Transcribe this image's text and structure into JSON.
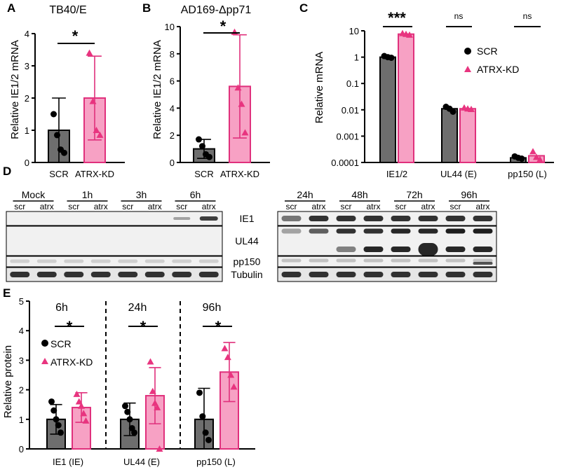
{
  "colors": {
    "scr": "#6e6e6e",
    "atrx": "#f7a1c4",
    "atrx_edge": "#e0307c",
    "atrx_point": "#e8347f",
    "point": "#000000"
  },
  "panels": {
    "A": {
      "letter": "A",
      "title": "TB40/E",
      "ylabel": "Relative IE1/2 mRNA",
      "sig": "*"
    },
    "B": {
      "letter": "B",
      "title": "AD169-Δpp71",
      "ylabel": "Relative IE1/2 mRNA",
      "sig": "*"
    },
    "C": {
      "letter": "C",
      "ylabel": "Relative mRNA",
      "sig": [
        "***",
        "ns",
        "ns"
      ],
      "legend": {
        "scr": "SCR",
        "atrx": "ATRX-KD"
      }
    },
    "D": {
      "letter": "D",
      "left_timepoints": [
        "Mock",
        "1h",
        "3h",
        "6h"
      ],
      "right_timepoints": [
        "24h",
        "48h",
        "72h",
        "96h"
      ],
      "lane_labels": [
        "scr",
        "atrx"
      ],
      "proteins": [
        "IE1",
        "UL44",
        "pp150",
        "Tubulin"
      ]
    },
    "E": {
      "letter": "E",
      "ylabel": "Relative protein",
      "timepoints": [
        "6h",
        "24h",
        "96h"
      ],
      "sig": [
        "*",
        "*",
        "*"
      ],
      "legend": {
        "scr": "SCR",
        "atrx": "ATRX-KD"
      }
    }
  },
  "chart_data": [
    {
      "panel": "A",
      "type": "bar",
      "title": "TB40/E",
      "ylabel": "Relative IE1/2 mRNA",
      "categories": [
        "SCR",
        "ATRX-KD"
      ],
      "ylim": [
        0,
        4
      ],
      "yticks": [
        0,
        1,
        2,
        3,
        4
      ],
      "values": [
        1.0,
        2.0
      ],
      "errors": [
        1.0,
        1.3
      ],
      "points": [
        [
          1.5,
          0.85,
          0.4,
          0.3
        ],
        [
          3.4,
          1.9,
          1.0,
          0.85
        ]
      ]
    },
    {
      "panel": "B",
      "type": "bar",
      "title": "AD169-Δpp71",
      "ylabel": "Relative IE1/2 mRNA",
      "categories": [
        "SCR",
        "ATRX-KD"
      ],
      "ylim": [
        0,
        10
      ],
      "yticks": [
        0,
        2,
        4,
        6,
        8,
        10
      ],
      "values": [
        1.0,
        5.6
      ],
      "errors": [
        0.7,
        3.8
      ],
      "points": [
        [
          1.7,
          1.2,
          0.6,
          0.4
        ],
        [
          9.6,
          5.5,
          4.3,
          2.2
        ]
      ]
    },
    {
      "panel": "C",
      "type": "bar",
      "ylabel": "Relative mRNA",
      "yscale": "log",
      "ylim": [
        0.0001,
        10
      ],
      "yticks": [
        0.0001,
        0.001,
        0.01,
        0.1,
        1,
        10
      ],
      "yticklabels": [
        "0.0001",
        "0.001",
        "0.01",
        "0.1",
        "1",
        "10"
      ],
      "categories": [
        "IE1/2",
        "UL44 (E)",
        "pp150 (L)"
      ],
      "series": [
        {
          "name": "SCR",
          "values": [
            1.0,
            0.011,
            0.00015
          ],
          "points": [
            [
              1.1,
              1.0,
              0.95
            ],
            [
              0.013,
              0.011,
              0.0085
            ],
            [
              0.00017,
              0.00015,
              0.00014
            ]
          ]
        },
        {
          "name": "ATRX-KD",
          "values": [
            7.5,
            0.011,
            0.00018
          ],
          "points": [
            [
              8.0,
              7.5,
              7.0
            ],
            [
              0.012,
              0.011,
              0.0105
            ],
            [
              0.00026,
              0.00016,
              0.00013
            ]
          ]
        }
      ]
    },
    {
      "panel": "E",
      "type": "bar",
      "ylabel": "Relative protein",
      "ylim": [
        0,
        5
      ],
      "yticks": [
        0,
        1,
        2,
        3,
        4,
        5
      ],
      "categories": [
        "IE1 (IE)",
        "UL44 (E)",
        "pp150 (L)"
      ],
      "series": [
        {
          "name": "SCR",
          "values": [
            1.0,
            1.0,
            1.0
          ],
          "errors": [
            0.5,
            0.55,
            1.05
          ],
          "points": [
            [
              1.6,
              1.3,
              1.0,
              0.8,
              0.55
            ],
            [
              1.45,
              1.25,
              1.0,
              0.7,
              0.55
            ],
            [
              1.9,
              1.1,
              0.55,
              0.3
            ]
          ]
        },
        {
          "name": "ATRX-KD",
          "values": [
            1.4,
            1.8,
            2.6
          ],
          "errors": [
            0.5,
            0.95,
            1.0
          ],
          "points": [
            [
              1.85,
              1.6,
              1.45,
              1.2,
              0.95
            ],
            [
              2.95,
              1.95,
              1.55,
              1.4,
              0.0
            ],
            [
              3.4,
              3.1,
              2.5,
              2.1
            ]
          ]
        }
      ]
    }
  ]
}
